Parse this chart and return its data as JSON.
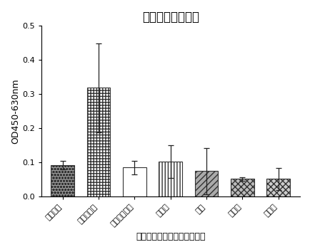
{
  "title": "抗原肽组合物检测",
  "xlabel": "各样品中猪病抗体对应的抗原",
  "ylabel": "OD450-630nm",
  "categories": [
    "阴性对照",
    "猪鼻支原体",
    "猪肺炎支原体",
    "伪狂犬",
    "猪瘟",
    "蓝耳病",
    "猪圆环"
  ],
  "values": [
    0.092,
    0.318,
    0.085,
    0.103,
    0.075,
    0.052,
    0.052
  ],
  "errors": [
    0.012,
    0.13,
    0.02,
    0.048,
    0.068,
    0.005,
    0.032
  ],
  "ylim": [
    0.0,
    0.5
  ],
  "yticks": [
    0.0,
    0.1,
    0.2,
    0.3,
    0.4,
    0.5
  ],
  "background_color": "#ffffff",
  "title_fontsize": 12,
  "axis_fontsize": 9,
  "tick_fontsize": 8,
  "bar_width": 0.65,
  "capsize": 3,
  "error_color": "#222222",
  "bar_face_colors": [
    "#aaaaaa",
    "#ffffff",
    "#ffffff",
    "#ffffff",
    "#aaaaaa",
    "#aaaaaa",
    "#cccccc"
  ],
  "hatch_patterns": [
    "oooo",
    "****",
    "====",
    "||||",
    "////",
    "xxxx",
    "xxxx"
  ],
  "edge_colors": [
    "#333333",
    "#333333",
    "#333333",
    "#333333",
    "#333333",
    "#333333",
    "#333333"
  ]
}
